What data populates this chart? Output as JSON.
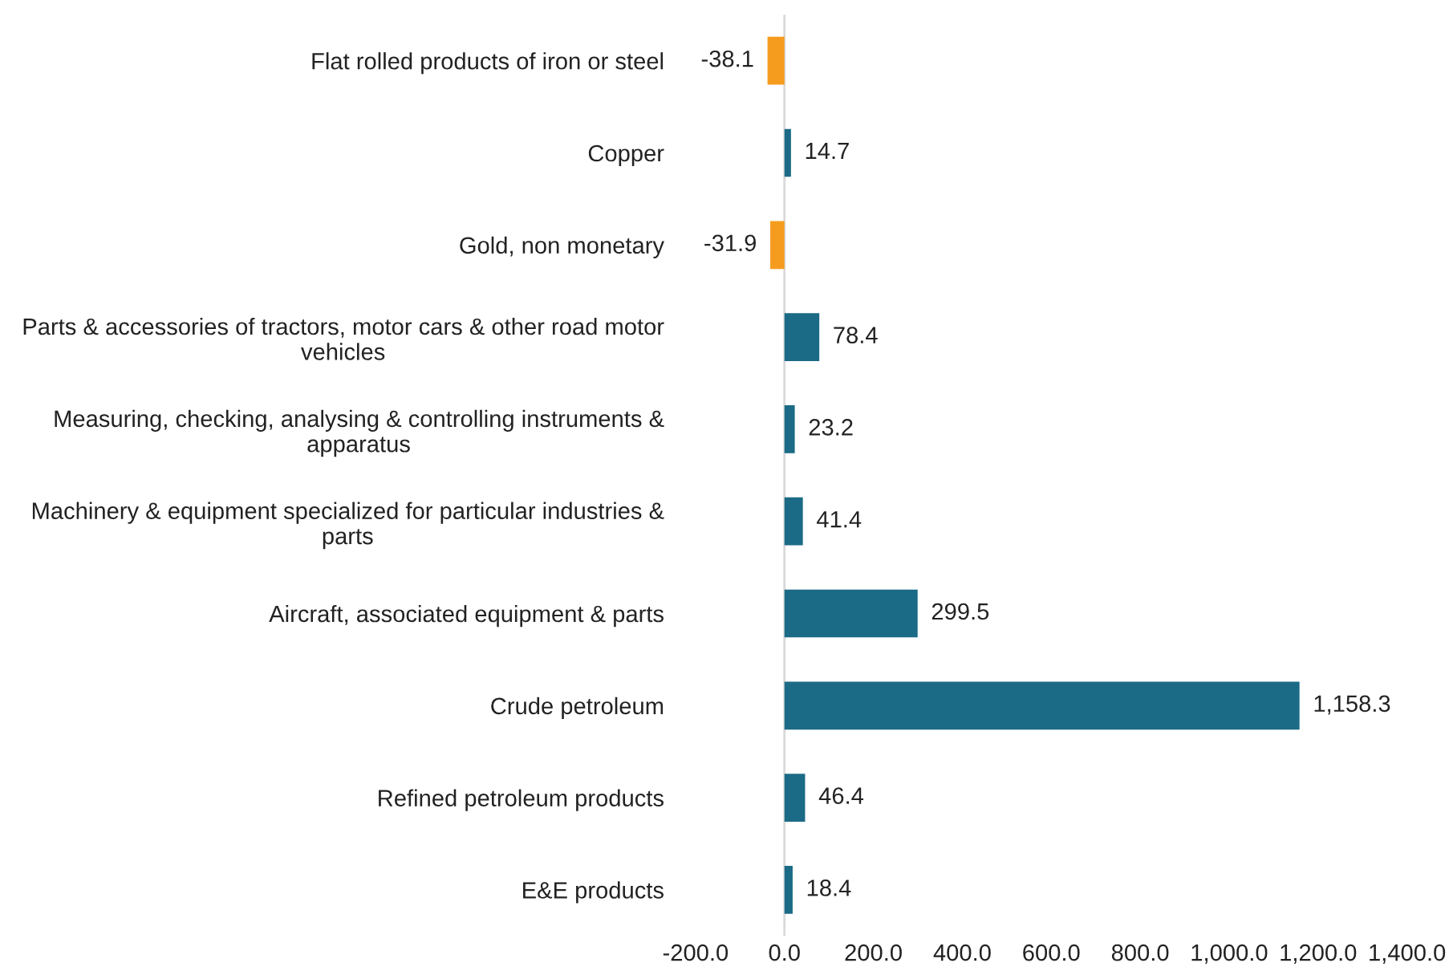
{
  "chart_data": {
    "type": "bar",
    "orientation": "horizontal",
    "categories": [
      "Flat rolled products of iron or steel",
      "Copper",
      "Gold, non monetary",
      "Parts & accessories of tractors, motor cars & other road motor\nvehicles",
      "Measuring, checking, analysing & controlling instruments &\napparatus",
      "Machinery & equipment specialized for particular industries &\nparts",
      "Aircraft, associated equipment & parts",
      "Crude petroleum",
      "Refined petroleum products",
      "E&E products"
    ],
    "values": [
      -38.1,
      14.7,
      -31.9,
      78.4,
      23.2,
      41.4,
      299.5,
      1158.3,
      46.4,
      18.4
    ],
    "colors": [
      "#f59c1f",
      "#1b6a86",
      "#f59c1f",
      "#1b6a86",
      "#1b6a86",
      "#1b6a86",
      "#1b6a86",
      "#1b6a86",
      "#1b6a86",
      "#1b6a86"
    ],
    "value_labels": [
      "-38.1",
      "14.7",
      "-31.9",
      "78.4",
      "23.2",
      "41.4",
      "299.5",
      "1,158.3",
      "46.4",
      "18.4"
    ],
    "xlim": [
      -200,
      1400
    ],
    "xticks": [
      {
        "value": -200,
        "label": "-200.0"
      },
      {
        "value": 0,
        "label": "0.0"
      },
      {
        "value": 200,
        "label": "200.0"
      },
      {
        "value": 400,
        "label": "400.0"
      },
      {
        "value": 600,
        "label": "600.0"
      },
      {
        "value": 800,
        "label": "800.0"
      },
      {
        "value": 1000,
        "label": "1,000.0"
      },
      {
        "value": 1200,
        "label": "1,200.0"
      },
      {
        "value": 1400,
        "label": "1,400.0"
      }
    ],
    "ref_lines": [
      {
        "axis": "x",
        "value": 0,
        "color": "#d9d9d9"
      }
    ],
    "legend": false
  }
}
